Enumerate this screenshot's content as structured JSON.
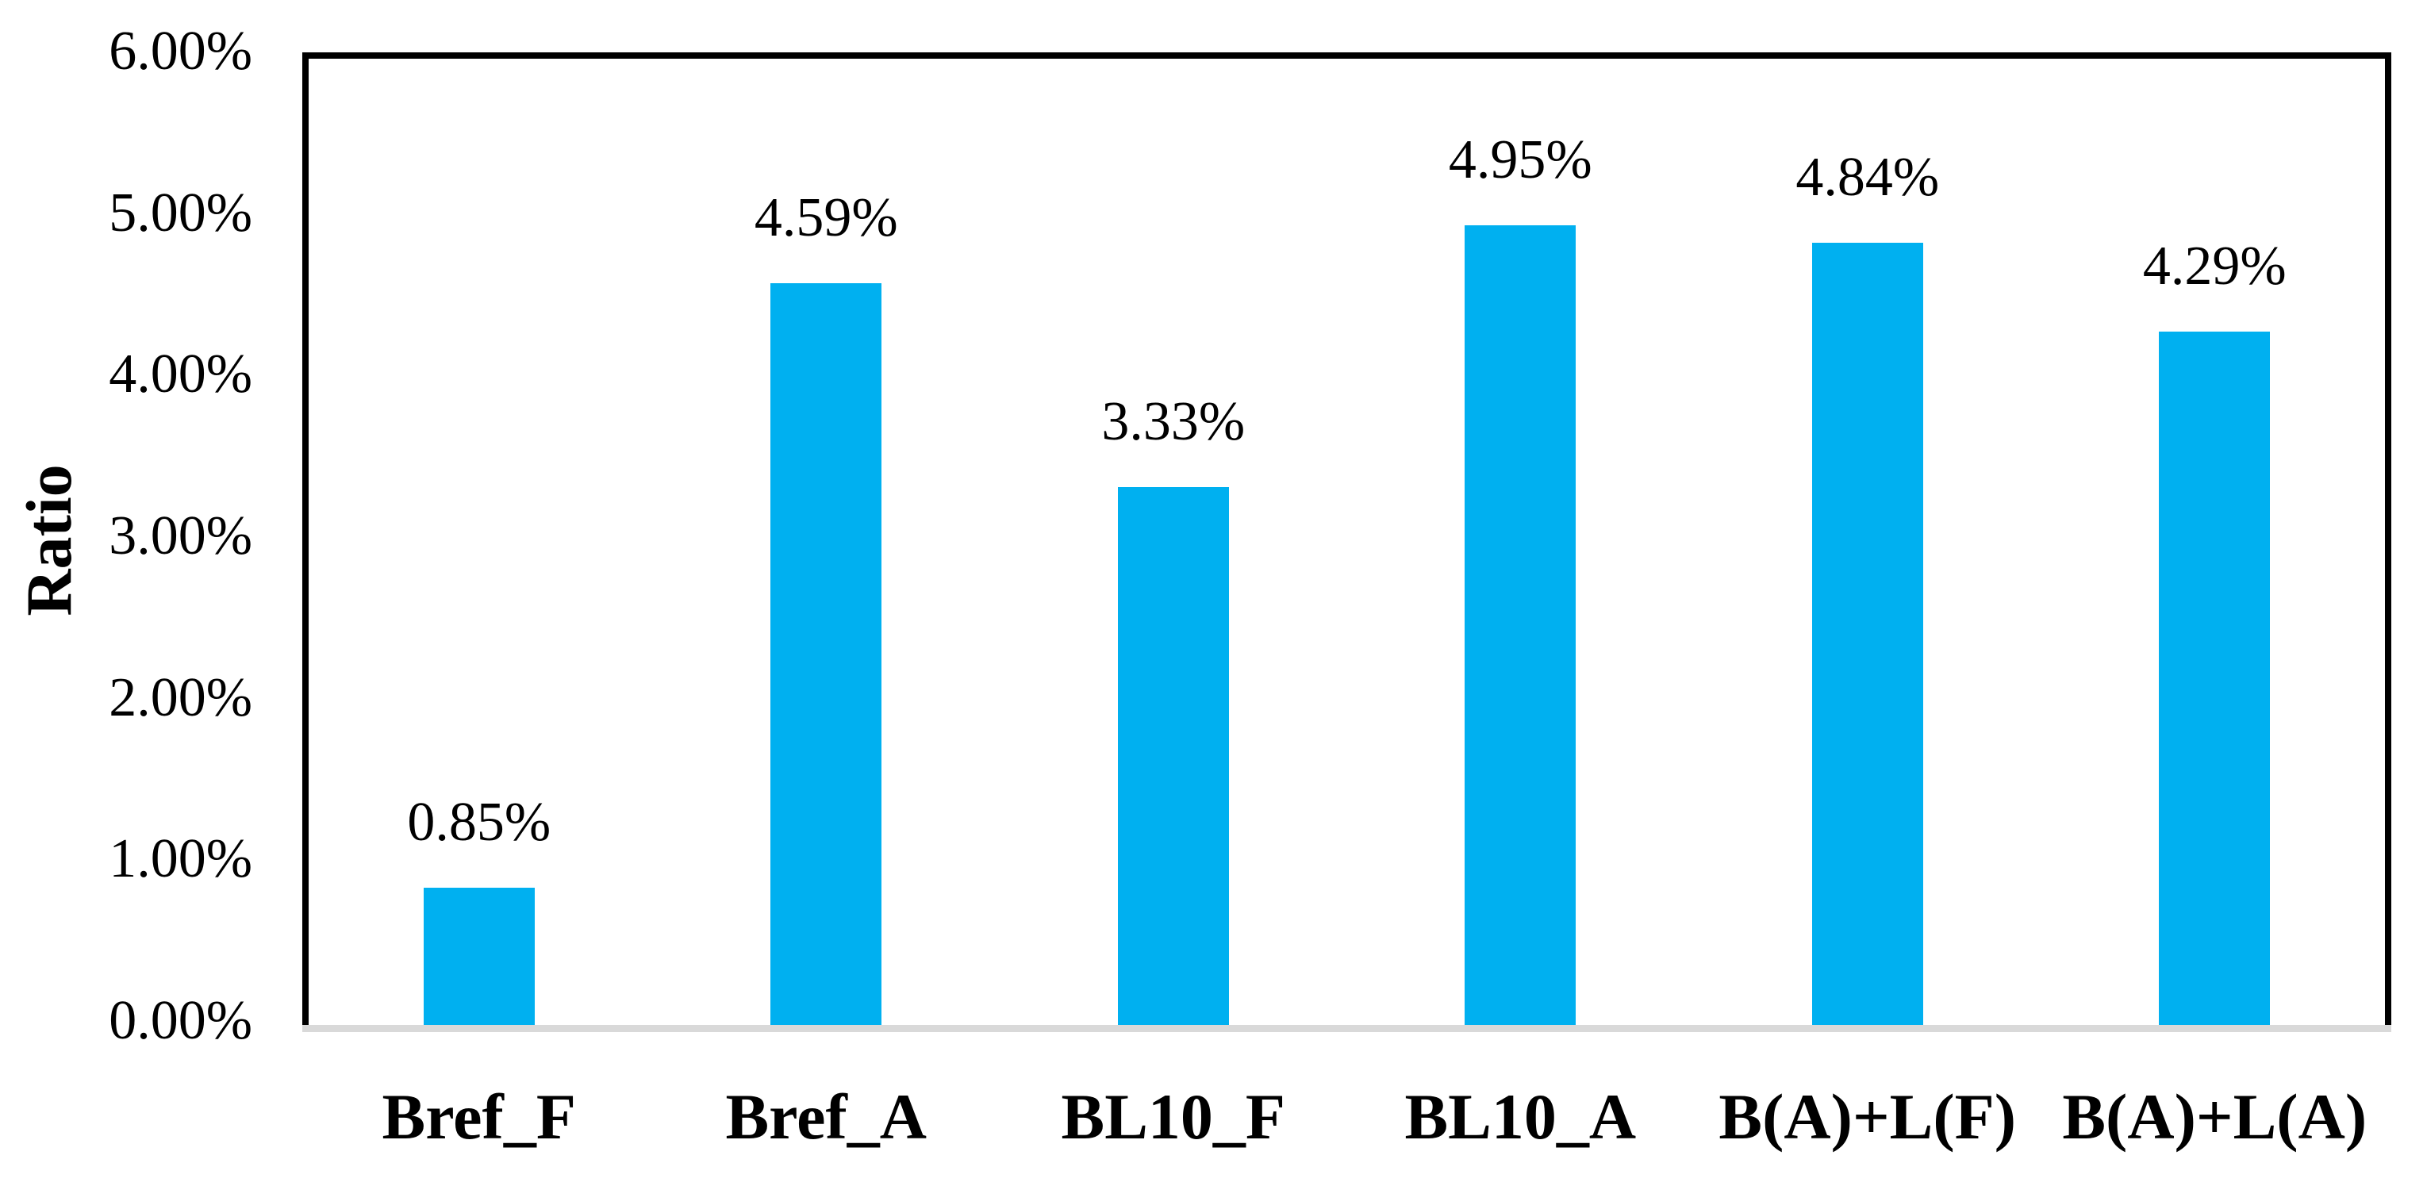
{
  "chart_data": {
    "type": "bar",
    "title": "",
    "xlabel": "",
    "ylabel": "Ratio",
    "categories": [
      "Bref_F",
      "Bref_A",
      "BL10_F",
      "BL10_A",
      "B(A)+L(F)",
      "B(A)+L(A)"
    ],
    "values": [
      0.85,
      4.59,
      3.33,
      4.95,
      4.84,
      4.29
    ],
    "data_labels": [
      "0.85%",
      "4.59%",
      "3.33%",
      "4.95%",
      "4.84%",
      "4.29%"
    ],
    "unit": "%",
    "ylim": [
      0,
      6
    ],
    "y_ticks": [
      0,
      1,
      2,
      3,
      4,
      5,
      6
    ],
    "y_tick_labels": [
      "0.00%",
      "1.00%",
      "2.00%",
      "3.00%",
      "4.00%",
      "5.00%",
      "6.00%"
    ],
    "grid": false,
    "legend": false,
    "bar_color": "#00b0f0",
    "axis_line_color": "#000000",
    "baseline_color": "#d9d9d9",
    "text_color": "#000000"
  }
}
